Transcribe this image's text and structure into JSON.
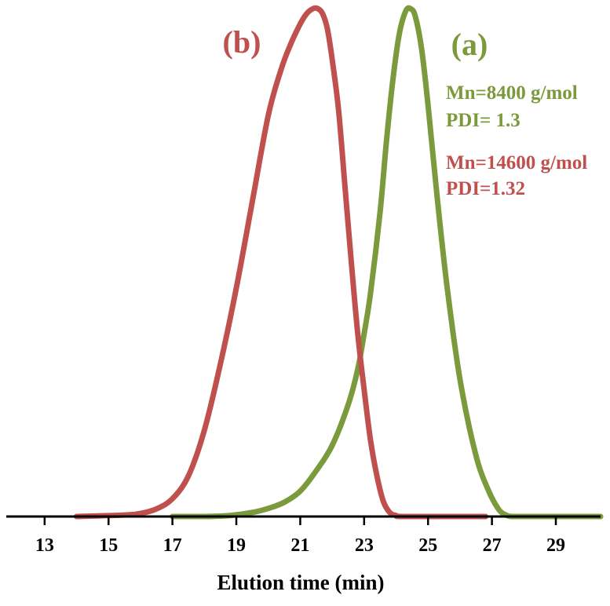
{
  "chart_data": {
    "type": "line",
    "title": "",
    "xlabel": "Elution time (min)",
    "ylabel": "",
    "xlim": [
      11.8,
      30.4
    ],
    "ylim": [
      0,
      1.0
    ],
    "x_ticks": [
      13,
      15,
      17,
      19,
      21,
      23,
      25,
      27,
      29
    ],
    "x_tick_labels": [
      "13",
      "15",
      "17",
      "19",
      "21",
      "23",
      "25",
      "27",
      "29"
    ],
    "grid": false,
    "y_axis_visible": false,
    "colors": {
      "series_a": "#7a9a3c",
      "series_b": "#c0504d",
      "axis": "#000000"
    },
    "series": [
      {
        "name": "(a)",
        "color": "#7a9a3c",
        "x": [
          17.0,
          18.0,
          18.8,
          19.5,
          20.0,
          20.5,
          21.0,
          21.5,
          22.0,
          22.5,
          22.8,
          23.0,
          23.2,
          23.5,
          23.7,
          23.9,
          24.1,
          24.3,
          24.45,
          24.6,
          24.8,
          25.0,
          25.3,
          25.6,
          26.0,
          26.5,
          26.9,
          27.2,
          27.4,
          27.6,
          28.0,
          30.4
        ],
        "values": [
          0.0,
          0.0,
          0.002,
          0.008,
          0.016,
          0.028,
          0.05,
          0.09,
          0.14,
          0.22,
          0.29,
          0.36,
          0.44,
          0.6,
          0.74,
          0.86,
          0.95,
          0.995,
          1.0,
          0.985,
          0.92,
          0.81,
          0.62,
          0.45,
          0.27,
          0.12,
          0.05,
          0.015,
          0.004,
          0.0,
          0.0,
          0.0
        ]
      },
      {
        "name": "(b)",
        "color": "#c0504d",
        "x": [
          14.0,
          15.5,
          16.0,
          16.5,
          17.0,
          17.5,
          18.0,
          18.5,
          19.0,
          19.5,
          20.0,
          20.4,
          20.7,
          21.0,
          21.2,
          21.4,
          21.55,
          21.7,
          21.85,
          22.0,
          22.2,
          22.4,
          22.6,
          22.8,
          23.0,
          23.2,
          23.4,
          23.6,
          23.8,
          24.0,
          24.3,
          26.8
        ],
        "values": [
          0.0,
          0.003,
          0.006,
          0.015,
          0.035,
          0.08,
          0.17,
          0.3,
          0.45,
          0.62,
          0.79,
          0.88,
          0.93,
          0.97,
          0.99,
          1.0,
          1.0,
          0.99,
          0.96,
          0.9,
          0.8,
          0.65,
          0.5,
          0.36,
          0.25,
          0.15,
          0.08,
          0.03,
          0.008,
          0.002,
          0.0,
          0.0
        ]
      }
    ],
    "annotations": {
      "label_a": "(a)",
      "label_b": "(b)",
      "a_mn": "Mn=8400 g/mol",
      "a_pdi": "PDI= 1.3",
      "b_mn": "Mn=14600 g/mol",
      "b_pdi": "PDI=1.32"
    }
  }
}
